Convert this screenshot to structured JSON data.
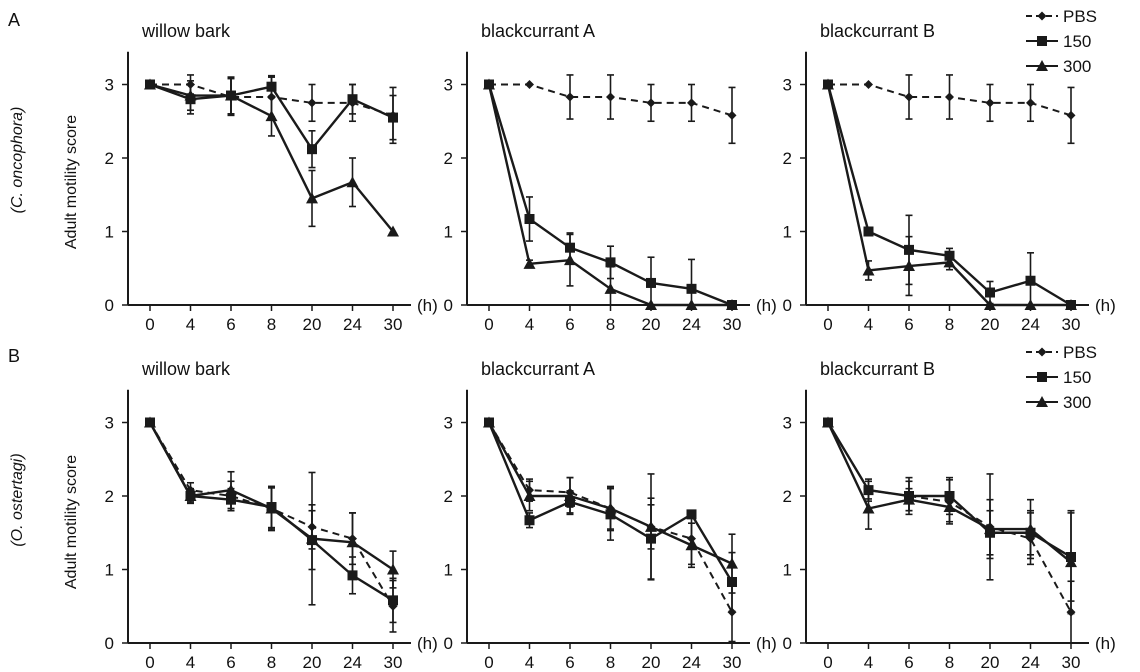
{
  "panel_letters": [
    "A",
    "B"
  ],
  "row_labels": [
    "(C. oncophora)",
    "(O. ostertagi)"
  ],
  "ylabel": "Adult motility score",
  "x_unit": "(h)",
  "legend": [
    {
      "label": "PBS",
      "marker": "diamond",
      "style": "dashed"
    },
    {
      "label": "150",
      "marker": "square",
      "style": "solid"
    },
    {
      "label": "300",
      "marker": "triangle",
      "style": "solid"
    }
  ],
  "colors": {
    "line": "#1a1a1a",
    "background": "#ffffff"
  },
  "chart_data": [
    {
      "type": "line",
      "row": "A",
      "title": "willow bark",
      "categories": [
        "0",
        "4",
        "6",
        "8",
        "20",
        "24",
        "30"
      ],
      "ylim": [
        0,
        3.5
      ],
      "yticks": [
        0,
        1,
        2,
        3
      ],
      "series": [
        {
          "name": "PBS",
          "values": [
            3.0,
            3.0,
            2.83,
            2.83,
            2.75,
            2.75,
            2.58
          ],
          "err": [
            0.0,
            0.13,
            0.25,
            0.27,
            0.25,
            0.25,
            0.38
          ]
        },
        {
          "name": "150",
          "values": [
            3.0,
            2.8,
            2.85,
            2.97,
            2.12,
            2.8,
            2.55
          ],
          "err": [
            0.0,
            0.2,
            0.25,
            0.15,
            0.25,
            0.2,
            0.3
          ]
        },
        {
          "name": "300",
          "values": [
            3.0,
            2.85,
            2.85,
            2.57,
            1.45,
            1.67,
            1.0
          ],
          "err": [
            0.0,
            0.2,
            0.25,
            0.27,
            0.38,
            0.33,
            0.0
          ]
        }
      ]
    },
    {
      "type": "line",
      "row": "A",
      "title": "blackcurrant A",
      "categories": [
        "0",
        "4",
        "6",
        "8",
        "20",
        "24",
        "30"
      ],
      "ylim": [
        0,
        3.5
      ],
      "yticks": [
        0,
        1,
        2,
        3
      ],
      "series": [
        {
          "name": "PBS",
          "values": [
            3.0,
            3.0,
            2.83,
            2.83,
            2.75,
            2.75,
            2.58
          ],
          "err": [
            0.0,
            0.0,
            0.3,
            0.3,
            0.25,
            0.25,
            0.38
          ]
        },
        {
          "name": "150",
          "values": [
            3.0,
            1.17,
            0.78,
            0.58,
            0.3,
            0.22,
            0.0
          ],
          "err": [
            0.0,
            0.3,
            0.2,
            0.22,
            0.35,
            0.4,
            0.0
          ]
        },
        {
          "name": "300",
          "values": [
            3.0,
            0.56,
            0.61,
            0.22,
            0.0,
            0.0,
            0.0
          ],
          "err": [
            0.0,
            0.05,
            0.35,
            0.3,
            0.0,
            0.0,
            0.0
          ]
        }
      ]
    },
    {
      "type": "line",
      "row": "A",
      "title": "blackcurrant B",
      "categories": [
        "0",
        "4",
        "6",
        "8",
        "20",
        "24",
        "30"
      ],
      "ylim": [
        0,
        3.5
      ],
      "yticks": [
        0,
        1,
        2,
        3
      ],
      "series": [
        {
          "name": "PBS",
          "values": [
            3.0,
            3.0,
            2.83,
            2.83,
            2.75,
            2.75,
            2.58
          ],
          "err": [
            0.0,
            0.0,
            0.3,
            0.3,
            0.25,
            0.25,
            0.38
          ]
        },
        {
          "name": "150",
          "values": [
            3.0,
            1.0,
            0.75,
            0.67,
            0.17,
            0.33,
            0.0
          ],
          "err": [
            0.0,
            0.0,
            0.47,
            0.1,
            0.15,
            0.38,
            0.0
          ]
        },
        {
          "name": "300",
          "values": [
            3.0,
            0.47,
            0.53,
            0.58,
            0.0,
            0.0,
            0.0
          ],
          "err": [
            0.0,
            0.13,
            0.4,
            0.1,
            0.0,
            0.0,
            0.0
          ]
        }
      ]
    },
    {
      "type": "line",
      "row": "B",
      "title": "willow bark",
      "categories": [
        "0",
        "4",
        "6",
        "8",
        "20",
        "24",
        "30"
      ],
      "ylim": [
        0,
        3.5
      ],
      "yticks": [
        0,
        1,
        2,
        3
      ],
      "series": [
        {
          "name": "PBS",
          "values": [
            3.0,
            2.08,
            2.0,
            1.83,
            1.58,
            1.42,
            0.5
          ],
          "err": [
            0.0,
            0.1,
            0.2,
            0.28,
            0.3,
            0.35,
            0.35
          ]
        },
        {
          "name": "150",
          "values": [
            3.0,
            2.0,
            1.95,
            1.85,
            1.4,
            0.92,
            0.58
          ],
          "err": [
            0.0,
            0.08,
            0.15,
            0.28,
            0.4,
            0.25,
            0.3
          ]
        },
        {
          "name": "300",
          "values": [
            3.0,
            2.0,
            2.08,
            1.83,
            1.42,
            1.37,
            1.0
          ],
          "err": [
            0.0,
            0.1,
            0.25,
            0.3,
            0.9,
            0.4,
            0.25
          ]
        }
      ]
    },
    {
      "type": "line",
      "row": "B",
      "title": "blackcurrant A",
      "categories": [
        "0",
        "4",
        "6",
        "8",
        "20",
        "24",
        "30"
      ],
      "ylim": [
        0,
        3.5
      ],
      "yticks": [
        0,
        1,
        2,
        3
      ],
      "series": [
        {
          "name": "PBS",
          "values": [
            3.0,
            2.08,
            2.05,
            1.83,
            1.58,
            1.42,
            0.42
          ],
          "err": [
            0.0,
            0.15,
            0.2,
            0.28,
            0.3,
            0.35,
            0.4
          ]
        },
        {
          "name": "150",
          "values": [
            3.0,
            1.67,
            1.92,
            1.75,
            1.42,
            1.75,
            0.83
          ],
          "err": [
            0.0,
            0.1,
            0.15,
            0.35,
            0.55,
            0.05,
            0.4
          ]
        },
        {
          "name": "300",
          "values": [
            3.0,
            2.0,
            2.0,
            1.83,
            1.58,
            1.33,
            1.08
          ],
          "err": [
            0.0,
            0.2,
            0.25,
            0.3,
            0.72,
            0.3,
            0.4
          ]
        }
      ]
    },
    {
      "type": "line",
      "row": "B",
      "title": "blackcurrant B",
      "categories": [
        "0",
        "4",
        "6",
        "8",
        "20",
        "24",
        "30"
      ],
      "ylim": [
        0,
        3.5
      ],
      "yticks": [
        0,
        1,
        2,
        3
      ],
      "series": [
        {
          "name": "PBS",
          "values": [
            3.0,
            2.08,
            2.0,
            1.92,
            1.58,
            1.42,
            0.42
          ],
          "err": [
            0.0,
            0.12,
            0.25,
            0.3,
            0.72,
            0.35,
            0.42
          ]
        },
        {
          "name": "150",
          "values": [
            3.0,
            2.08,
            2.0,
            2.0,
            1.5,
            1.5,
            1.17
          ],
          "err": [
            0.0,
            0.15,
            0.2,
            0.25,
            0.3,
            0.3,
            0.6
          ]
        },
        {
          "name": "300",
          "values": [
            3.0,
            1.83,
            1.95,
            1.85,
            1.55,
            1.55,
            1.1
          ],
          "err": [
            0.0,
            0.28,
            0.15,
            0.2,
            0.4,
            0.4,
            0.7
          ]
        }
      ]
    }
  ]
}
